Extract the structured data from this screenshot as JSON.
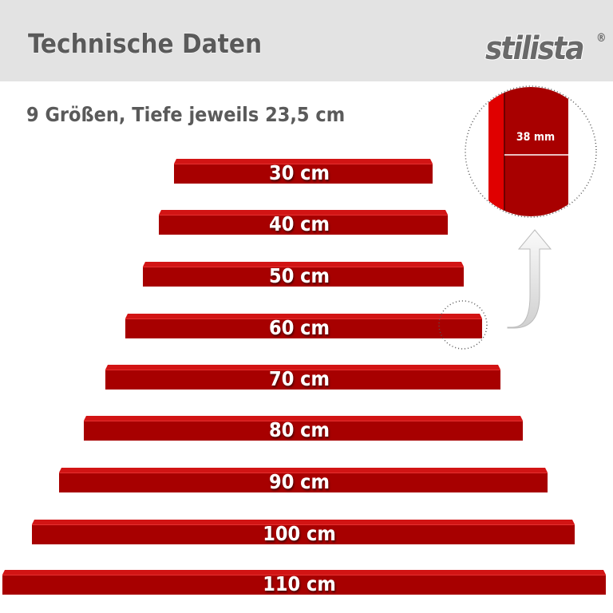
{
  "header": {
    "title": "Technische Daten",
    "logo": "stilista",
    "trademark": "®"
  },
  "subtitle": "9 Größen, Tiefe jeweils 23,5 cm",
  "detail": {
    "label": "38 mm"
  },
  "shelves": [
    {
      "label": "30 cm"
    },
    {
      "label": "40 cm"
    },
    {
      "label": "50 cm"
    },
    {
      "label": "60 cm"
    },
    {
      "label": "70 cm"
    },
    {
      "label": "80 cm"
    },
    {
      "label": "90 cm"
    },
    {
      "label": "100 cm"
    },
    {
      "label": "110 cm"
    }
  ]
}
